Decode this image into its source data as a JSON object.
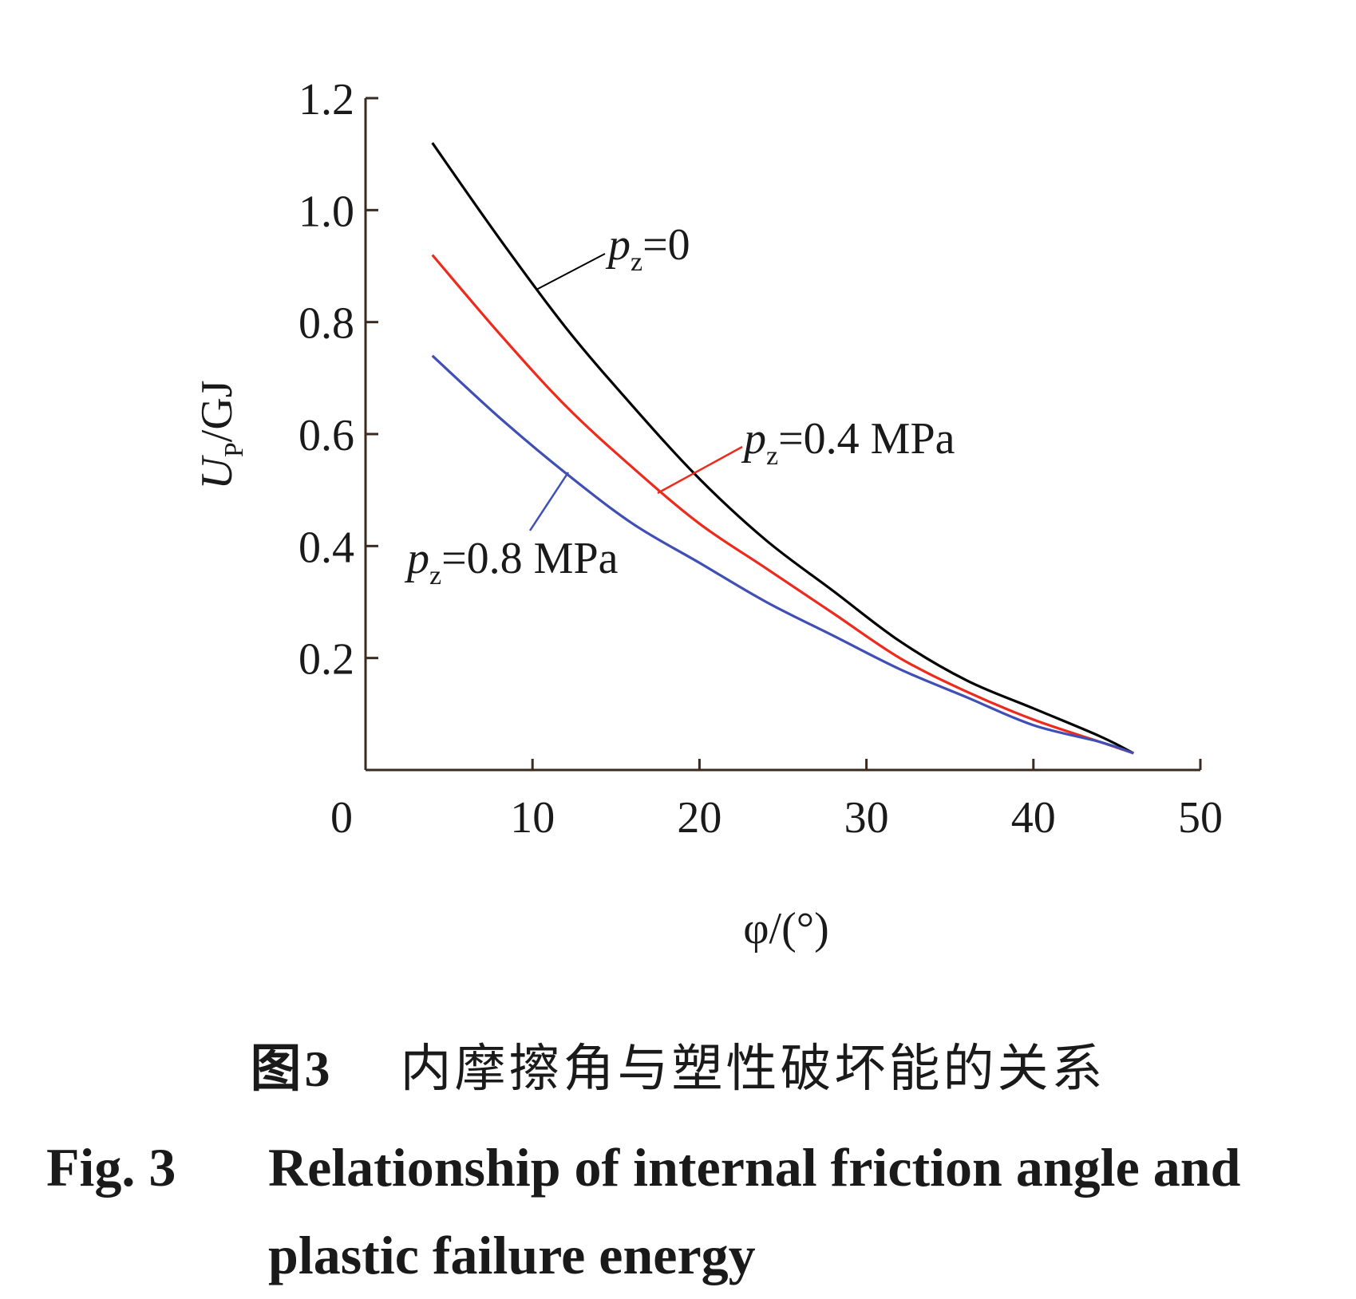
{
  "chart_data": {
    "type": "line",
    "xlabel": "φ/(°)",
    "ylabel": "UP/GJ",
    "ylabel_parts": {
      "main": "U",
      "sub": "P",
      "rest": "/GJ"
    },
    "xlim": [
      0,
      50
    ],
    "ylim": [
      0,
      1.2
    ],
    "xticks": [
      0,
      10,
      20,
      30,
      40,
      50
    ],
    "xtick_labels": [
      "0",
      "10",
      "20",
      "30",
      "40",
      "50"
    ],
    "yticks": [
      0.2,
      0.4,
      0.6,
      0.8,
      1.0,
      1.2
    ],
    "ytick_labels": [
      "0.2",
      "0.4",
      "0.6",
      "0.8",
      "1.0",
      "1.2"
    ],
    "grid": false,
    "series": [
      {
        "name": "pz=0",
        "label": {
          "main": "p",
          "sub": "z",
          "rest": "=0"
        },
        "color": "#000000",
        "x": [
          4,
          8,
          12,
          16,
          20,
          24,
          28,
          32,
          36,
          40,
          44,
          46
        ],
        "y": [
          1.12,
          0.95,
          0.79,
          0.65,
          0.52,
          0.41,
          0.32,
          0.23,
          0.16,
          0.11,
          0.06,
          0.03
        ]
      },
      {
        "name": "pz=0.4 MPa",
        "label": {
          "main": "p",
          "sub": "z",
          "rest": "=0.4 MPa"
        },
        "color": "#ee2a1c",
        "x": [
          4,
          8,
          12,
          16,
          20,
          24,
          28,
          32,
          36,
          40,
          44,
          46
        ],
        "y": [
          0.92,
          0.78,
          0.65,
          0.54,
          0.44,
          0.36,
          0.28,
          0.2,
          0.14,
          0.09,
          0.05,
          0.03
        ]
      },
      {
        "name": "pz=0.8 MPa",
        "label": {
          "main": "p",
          "sub": "z",
          "rest": "=0.8 MPa"
        },
        "color": "#3f4fb5",
        "x": [
          4,
          8,
          12,
          16,
          20,
          24,
          28,
          32,
          36,
          40,
          44,
          46
        ],
        "y": [
          0.74,
          0.63,
          0.53,
          0.44,
          0.37,
          0.3,
          0.24,
          0.18,
          0.13,
          0.08,
          0.05,
          0.03
        ]
      }
    ]
  },
  "caption": {
    "cn_number": "图3",
    "cn_title": "内摩擦角与塑性破坏能的关系",
    "en_number": "Fig. 3",
    "en_title_line1": "Relationship of internal friction angle and",
    "en_title_line2": "plastic failure energy"
  }
}
